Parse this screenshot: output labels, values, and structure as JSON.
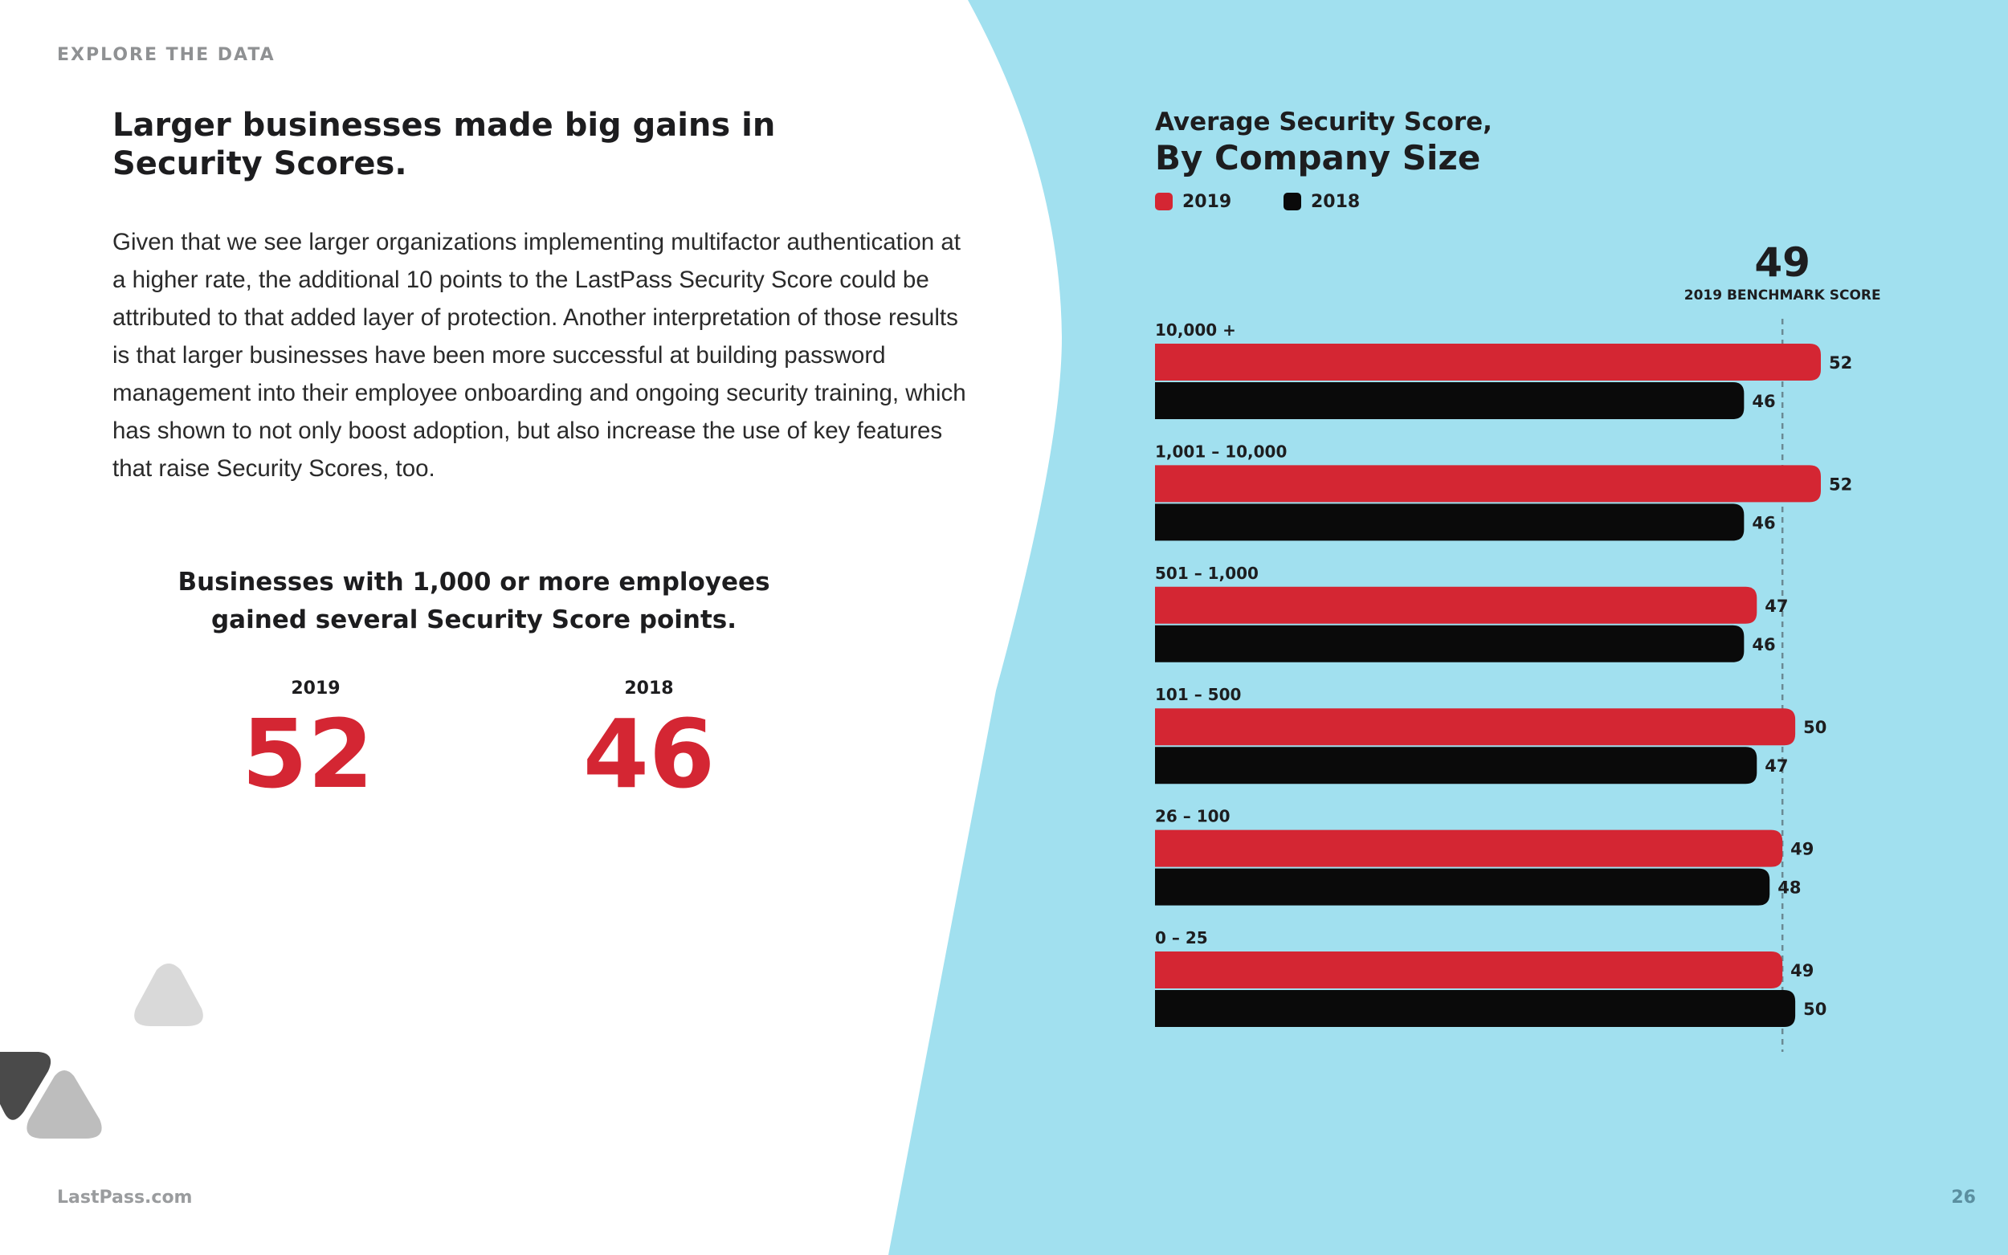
{
  "header": {
    "section_label": "EXPLORE THE DATA"
  },
  "main": {
    "headline_line1": "Larger businesses made big gains in",
    "headline_line2": "Security Scores.",
    "body": "Given that we see larger organizations implementing multifactor authentication at a higher rate, the additional 10 points to the LastPass Security Score could be attributed to that added layer of protection. Another interpretation of those results is that larger businesses have been more successful at building password management into their employee onboarding and ongoing security training, which has shown to not only boost adoption, but also increase the use of key features that raise Security Scores, too.",
    "callout_line1": "Businesses with 1,000 or more employees",
    "callout_line2": "gained several Security Score points.",
    "stats": [
      {
        "year": "2019",
        "value": "52"
      },
      {
        "year": "2018",
        "value": "46"
      }
    ]
  },
  "footer": {
    "site": "LastPass.com",
    "page_number": "26"
  },
  "colors": {
    "accent_red": "#d42633",
    "bar_black": "#0a0a0a",
    "panel_blue": "#a1e0ef",
    "shape_light": "#d9d9d9",
    "shape_mid": "#bdbdbd",
    "shape_dark": "#4a4a4a"
  },
  "chart_data": {
    "type": "bar",
    "orientation": "horizontal",
    "title": "Average Security Score,",
    "subtitle": "By Company Size",
    "legend_position": "top-left",
    "categories": [
      "10,000 +",
      "1,001 – 10,000",
      "501 – 1,000",
      "101 – 500",
      "26 – 100",
      "0 – 25"
    ],
    "series": [
      {
        "name": "2019",
        "values": [
          52,
          52,
          47,
          50,
          49,
          49
        ],
        "color": "#d42633"
      },
      {
        "name": "2018",
        "values": [
          46,
          46,
          46,
          47,
          48,
          50
        ],
        "color": "#0a0a0a"
      }
    ],
    "benchmark": {
      "value": 49,
      "label": "2019 BENCHMARK SCORE",
      "display": "49"
    },
    "xlim": [
      0,
      52
    ],
    "grid": false
  }
}
